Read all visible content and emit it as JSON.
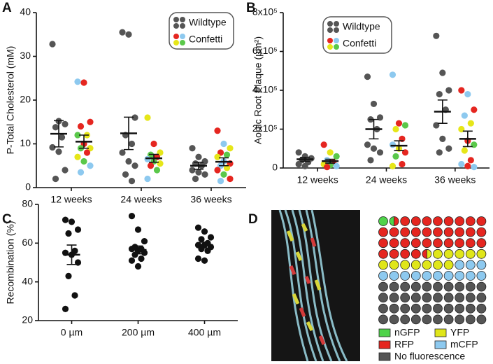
{
  "chart_data": [
    {
      "type": "strip",
      "panel": "A",
      "ylabel": "P-Total Cholesterol (mM)",
      "categories": [
        "12 weeks",
        "24 weeks",
        "36 weeks"
      ],
      "ylim": [
        0,
        40
      ],
      "yticks": [
        0,
        10,
        20,
        30,
        40
      ],
      "legend": "upper right",
      "series": [
        {
          "name": "Wildtype",
          "color": "#555555",
          "values": [
            [
              32.8,
              15.2,
              14.5,
              13.8,
              11.5,
              9.2,
              8.2,
              4,
              2
            ],
            [
              35.5,
              35,
              16,
              12,
              10,
              8,
              6,
              5,
              3,
              1.5
            ],
            [
              9,
              7,
              6,
              5.5,
              5,
              4,
              3.5,
              3,
              2
            ]
          ],
          "means": [
            12.3,
            12.4,
            5
          ],
          "sems": [
            3,
            3.7,
            0.8
          ]
        },
        {
          "name": "Confetti",
          "palette": [
            "#e52620",
            "#8dc9ef",
            "#e6e619",
            "#5ac84a"
          ],
          "values": [
            [
              24.2,
              24,
              15,
              14,
              12,
              12,
              10,
              9,
              9,
              8,
              7,
              6,
              5,
              3.5
            ],
            [
              16,
              10,
              8,
              7.5,
              7,
              6.5,
              6,
              5.5,
              5,
              4,
              2
            ],
            [
              13,
              10,
              9,
              8,
              7.5,
              7,
              6,
              5.5,
              5,
              4.5,
              4,
              3,
              2,
              1.5
            ]
          ],
          "point_colors": [
            [
              "#8dc9ef",
              "#e52620",
              "#e52620",
              "#e52620",
              "#e6e619",
              "#5ac84a",
              "#e52620",
              "#e6e619",
              "#5ac84a",
              "#e52620",
              "#e6e619",
              "#5ac84a",
              "#8dc9ef",
              "#8dc9ef"
            ],
            [
              "#e6e619",
              "#e52620",
              "#e6e619",
              "#5ac84a",
              "#e52620",
              "#8dc9ef",
              "#5ac84a",
              "#e6e619",
              "#e52620",
              "#5ac84a",
              "#8dc9ef"
            ],
            [
              "#e52620",
              "#8dc9ef",
              "#e6e619",
              "#e52620",
              "#5ac84a",
              "#e6e619",
              "#8dc9ef",
              "#e52620",
              "#8dc9ef",
              "#e6e619",
              "#e52620",
              "#5ac84a",
              "#e52620",
              "#8dc9ef"
            ]
          ],
          "means": [
            10.5,
            6.7,
            5.9
          ],
          "sems": [
            1.5,
            0.9,
            0.9
          ]
        }
      ]
    },
    {
      "type": "strip",
      "panel": "B",
      "ylabel": "Aortic Root Plaque (µm²)",
      "categories": [
        "12 weeks",
        "24 weeks",
        "36 weeks"
      ],
      "ylim": [
        0,
        800000
      ],
      "yticks": [
        0,
        {
          "value": 200000,
          "label": "2x10⁵"
        },
        {
          "value": 400000,
          "label": "4x10⁵"
        },
        {
          "value": 600000,
          "label": "6x10⁵"
        },
        {
          "value": 800000,
          "label": "8x10⁵"
        }
      ],
      "legend": "upper left",
      "series": [
        {
          "name": "Wildtype",
          "color": "#555555",
          "values": [
            [
              80000,
              60000,
              50000,
              40000,
              30000,
              20000,
              10000
            ],
            [
              470000,
              330000,
              260000,
              250000,
              200000,
              120000,
              100000,
              80000,
              40000
            ],
            [
              680000,
              490000,
              400000,
              380000,
              300000,
              220000,
              150000,
              100000,
              80000
            ]
          ],
          "means": [
            45000,
            200000,
            290000
          ],
          "sems": [
            10000,
            50000,
            60000
          ]
        },
        {
          "name": "Confetti",
          "palette": [
            "#e52620",
            "#8dc9ef",
            "#e6e619",
            "#5ac84a"
          ],
          "values": [
            [
              120000,
              80000,
              60000,
              40000,
              30000,
              20000,
              15000,
              10000,
              5000
            ],
            [
              480000,
              230000,
              220000,
              200000,
              150000,
              120000,
              100000,
              80000,
              60000,
              20000,
              10000
            ],
            [
              400000,
              380000,
              300000,
              270000,
              230000,
              200000,
              140000,
              120000,
              90000,
              40000,
              20000,
              10000,
              5000
            ]
          ],
          "point_colors": [
            [
              "#e52620",
              "#e6e619",
              "#5ac84a",
              "#8dc9ef",
              "#e52620",
              "#e6e619",
              "#5ac84a",
              "#8dc9ef",
              "#e52620"
            ],
            [
              "#8dc9ef",
              "#e52620",
              "#5ac84a",
              "#e6e619",
              "#e52620",
              "#8dc9ef",
              "#e6e619",
              "#e52620",
              "#5ac84a",
              "#e52620",
              "#e6e619"
            ],
            [
              "#e52620",
              "#8dc9ef",
              "#e52620",
              "#8dc9ef",
              "#e6e619",
              "#e6e619",
              "#e52620",
              "#5ac84a",
              "#e6e619",
              "#e52620",
              "#8dc9ef",
              "#e52620",
              "#8dc9ef"
            ]
          ],
          "means": [
            35000,
            115000,
            150000
          ],
          "sems": [
            10000,
            25000,
            40000
          ]
        }
      ]
    },
    {
      "type": "strip",
      "panel": "C",
      "ylabel": "Recombination (%)",
      "categories": [
        "0 µm",
        "200 µm",
        "400 µm"
      ],
      "ylim": [
        20,
        80
      ],
      "yticks": [
        20,
        40,
        60,
        80
      ],
      "series": [
        {
          "color": "#111111",
          "values": [
            [
              72,
              71,
              67,
              65,
              56,
              55,
              54,
              50,
              43,
              33,
              26
            ],
            [
              74,
              67,
              61,
              58,
              57,
              57,
              56,
              55,
              54,
              52,
              51,
              48
            ],
            [
              68,
              66,
              63,
              62,
              60,
              59,
              59,
              58,
              57,
              56,
              52,
              51
            ]
          ],
          "means": [
            54,
            56.5,
            59
          ],
          "sems": [
            5,
            2,
            1.5
          ]
        }
      ]
    },
    {
      "type": "waffle",
      "panel": "D",
      "categories": [
        "nGFP",
        "RFP",
        "YFP",
        "mCFP",
        "No fluorescence"
      ],
      "values": [
        1.5,
        33,
        12.5,
        13,
        40
      ],
      "colors": [
        "#4fd34a",
        "#e52620",
        "#e0e61a",
        "#8dc9ef",
        "#555555"
      ]
    }
  ]
}
